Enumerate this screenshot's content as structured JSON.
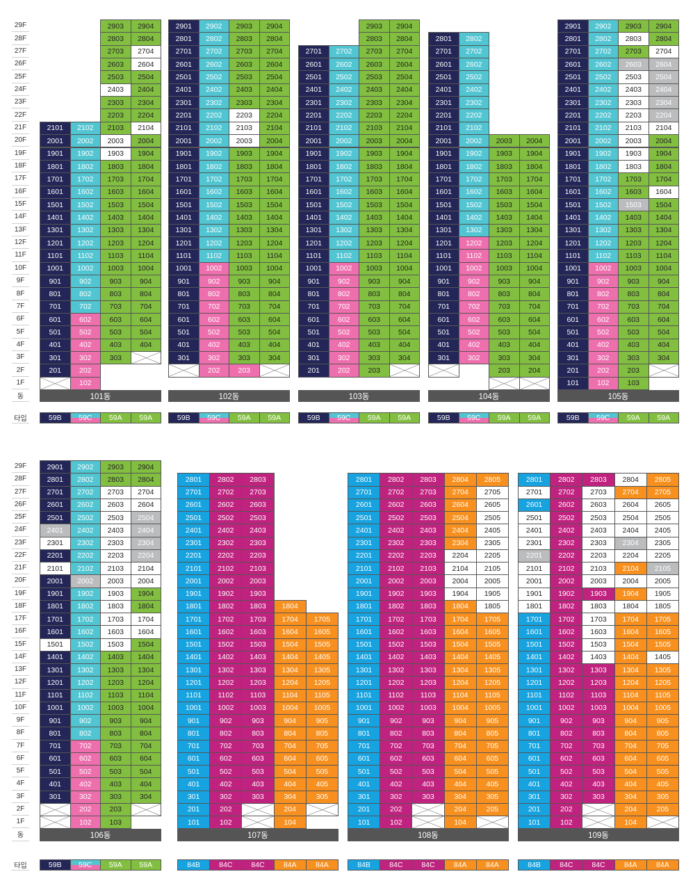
{
  "chart_data": {
    "type": "table",
    "title": "",
    "labels": {
      "floors": [
        "29F",
        "28F",
        "27F",
        "26F",
        "25F",
        "24F",
        "23F",
        "22F",
        "21F",
        "20F",
        "19F",
        "18F",
        "17F",
        "16F",
        "15F",
        "14F",
        "13F",
        "12F",
        "11F",
        "10F",
        "9F",
        "8F",
        "7F",
        "6F",
        "5F",
        "4F",
        "3F",
        "2F",
        "1F"
      ],
      "dong": "동",
      "type": "타입"
    },
    "colors": {
      "N": "#232657",
      "C": "#52c5d2",
      "P": "#ee6fae",
      "G": "#82bf40",
      "W": "#ffffff",
      "S": "#bbbcbe",
      "B": "#17a3e0",
      "M": "#c0237f",
      "O": "#f7901e",
      "X": "#ffffff",
      "CP": "#52c5d2",
      "label_bg": "#555555"
    },
    "panels": [
      {
        "buildings": [
          {
            "name": "101동",
            "columns": [
              {
                "type": "59B",
                "cells": "NNNNNNNNNNNNNNNNNNNNX-",
                "top": 21
              },
              {
                "type": "59C",
                "cells": "CCCCCCCCCCCCCCCPPPPPPPP",
                "top": 21
              },
              {
                "type": "59A",
                "cells": "GGGGGWGGGWWGGGGGGGGGGGGGGGG",
                "top": 29
              },
              {
                "type": "59A",
                "cells": "GGWWGGGGWGGGGGGGGGGGGGGGGGX",
                "top": 29
              }
            ]
          },
          {
            "name": "102동",
            "columns": [
              {
                "type": "59B",
                "cells": "NNNNNNNNNNNNNNNNNNNNNNNNNNNX",
                "top": 29
              },
              {
                "type": "59C",
                "cells": "CCCCCCCCCCCCCCCCCCCPPPPPPPPP",
                "top": 29
              },
              {
                "type": "59A",
                "cells": "GGGGGGGWWWGGGGGGGGGGGGGGGGGP",
                "top": 29
              },
              {
                "type": "59A",
                "cells": "GGGGGGGGGGGGGGGGGGGGGGGGGGGX",
                "top": 29
              }
            ]
          },
          {
            "name": "103동",
            "columns": [
              {
                "type": "59B",
                "cells": "NNNNNNNNNNNNNNNNNNNNNNNNNN",
                "top": 27
              },
              {
                "type": "59C",
                "cells": "CCCCCCCCCCCCCCCCCPPPPPPPPP",
                "top": 27
              },
              {
                "type": "59A",
                "cells": "GGGGGGGGGGGGGGGGGGGGGGGGGGGG",
                "top": 29
              },
              {
                "type": "59A",
                "cells": "GGGGGGGGGGGGGGGGGGGGGGGGGGGX",
                "top": 29
              }
            ]
          },
          {
            "name": "104동",
            "columns": [
              {
                "type": "59B",
                "cells": "NNNNNNNNNNNNNNNNNNNNNNNNNNX",
                "top": 28
              },
              {
                "type": "59C",
                "cells": "CCCCCCCCCCCCCCCCPPPPPPPPPP",
                "top": 28
              },
              {
                "type": "59A",
                "cells": "GGGGGGGGGGGGGGGGGGGX",
                "top": 20
              },
              {
                "type": "59A",
                "cells": "GGGGGGGGGGGGGGGGGGGX",
                "top": 20
              }
            ]
          },
          {
            "name": "105동",
            "columns": [
              {
                "type": "59B",
                "cells": "NNNNNNNNNNNNNNNNNNNNNNNNNNNNN",
                "top": 29
              },
              {
                "type": "59C",
                "cells": "CCCCCCCCCCCCCCCCCCCPPPPPPPPPP",
                "top": 29
              },
              {
                "type": "59A",
                "cells": "GWGSWWWWWWWWGGSGGGGGGGGGGGGGG",
                "top": 29
              },
              {
                "type": "59A",
                "cells": "GGWSSSSSWGGGGWGGGGGGGGGGGGGX",
                "top": 29
              }
            ]
          }
        ]
      },
      {
        "buildings": [
          {
            "name": "106동",
            "columns": [
              {
                "type": "59B",
                "cells": "NNNNNSWNWNNNNNWNNNNNNNNNNNNXX",
                "top": 29
              },
              {
                "type": "59C",
                "cells": "CCCCCCCCCSCCCCCCCCCCCCPPPPPPPP",
                "top": 29
              },
              {
                "type": "59A",
                "cells": "GGWWWWWWWWWWWWWGGGGGGGGGGGGGG",
                "top": 29
              },
              {
                "type": "59A",
                "cells": "GGWWSSSSWWGGWWGGGGGGGGGGGGGX",
                "top": 29
              }
            ]
          },
          {
            "name": "107동",
            "columns": [
              {
                "type": "84B",
                "cells": "BBBBBBBBBBBBBBBBBBBBBBBBBBBBB",
                "top": 28
              },
              {
                "type": "84C",
                "cells": "MMMMMMMMMMMMMMMMMMMMMMMMMMMMM",
                "top": 28
              },
              {
                "type": "84C",
                "cells": "MMMMMMMMMMMMMMMMMMMMMMMMMMXX",
                "top": 28
              },
              {
                "type": "84A",
                "cells": "OOOOOOOOOOOOOOOOOOO",
                "top": 18
              },
              {
                "type": "84A",
                "cells": "OOOOOOOOOOOOOOOX",
                "top": 17
              }
            ]
          },
          {
            "name": "108동",
            "columns": [
              {
                "type": "84B",
                "cells": "BBBBBBBBBBBBBBBBBBBBBBBBBBBBB",
                "top": 28
              },
              {
                "type": "84C",
                "cells": "MMMMMMMMMMMMMMMMMMMMMMMMMMMMM",
                "top": 28
              },
              {
                "type": "84C",
                "cells": "MMMMMMMMMMMMMMMMMMMMMMMMMMXX",
                "top": 28
              },
              {
                "type": "84A",
                "cells": "OOOOOOWWWWOOOOOOOOOOOOOOOOOOO",
                "top": 28
              },
              {
                "type": "84A",
                "cells": "OWWWWWWWWWWOOOOOOOOOOOOOOOOX",
                "top": 28
              }
            ]
          },
          {
            "name": "109동",
            "columns": [
              {
                "type": "84B",
                "cells": "BWBWWWSWWWWBBBBBBBBBBBBBBBBBB",
                "top": 28
              },
              {
                "type": "84C",
                "cells": "MMMMMMMMMMMMMMMMMMMMMMMMMMMMM",
                "top": 28
              },
              {
                "type": "84C",
                "cells": "MWWWWWWWWMWWWWWMMMMMMMMMMMXX",
                "top": 28
              },
              {
                "type": "84A",
                "cells": "WOWWWSWOWOWOOOOOOOOOOOOOOOOOO",
                "top": 28
              },
              {
                "type": "84A",
                "cells": "OOWWWWWSWWWOOOWOOOOOOOOOOOOX",
                "top": 28
              }
            ]
          }
        ]
      }
    ]
  }
}
